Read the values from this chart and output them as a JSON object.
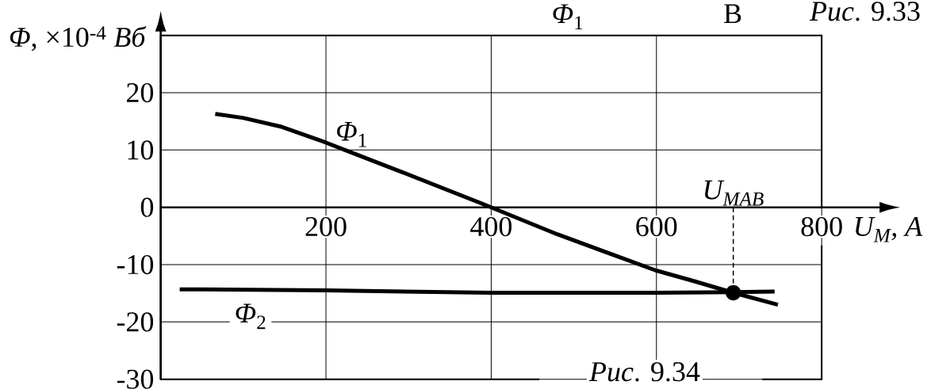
{
  "chart_data": {
    "type": "line",
    "xlabel": "U$_{M}$, A",
    "ylabel": "*Φ*, ×10$^{-4}$ *Вб*",
    "xlim": [
      0,
      800
    ],
    "ylim": [
      -30,
      30
    ],
    "xticks": [
      200,
      400,
      600,
      800
    ],
    "yticks": [
      -30,
      -20,
      -10,
      0,
      10,
      20
    ],
    "grid": true,
    "series": [
      {
        "name": "*Φ*$_{1}$",
        "color": "#000000",
        "x": [
          66,
          100,
          145,
          200,
          223,
          293,
          381,
          400,
          480,
          599,
          646,
          693,
          747
        ],
        "values": [
          16.3,
          15.6,
          14.1,
          11.3,
          10,
          6.1,
          1.1,
          0,
          -4.7,
          -11,
          -12.9,
          -14.9,
          -17
        ]
      },
      {
        "name": "*Φ*$_{2}$",
        "color": "#000000",
        "x": [
          23,
          200,
          400,
          600,
          693,
          743
        ],
        "values": [
          -14.3,
          -14.5,
          -14.9,
          -14.9,
          -14.8,
          -14.7
        ]
      },
      {
        "type": "line",
        "line_style": "dashed",
        "color": "#000000",
        "x": [
          693,
          693
        ],
        "values": [
          0,
          -14.9
        ]
      },
      {
        "type": "scatter",
        "marker": "circle",
        "color": "#000000",
        "x": [
          693
        ],
        "values": [
          -14.9
        ]
      }
    ],
    "annotations": [
      "*Рис*. 9.34",
      "*Рис*. 9.33",
      "*Φ*$_{1}$",
      "B",
      {
        "text": "U$_{MAB}$",
        "x": 693,
        "y": 0
      }
    ]
  }
}
